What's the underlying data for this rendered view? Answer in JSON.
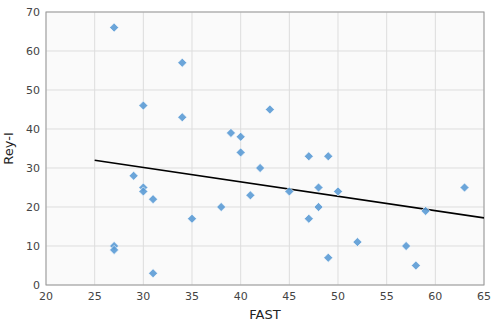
{
  "chart_data": {
    "type": "scatter",
    "xlabel": "FAST",
    "ylabel": "Rey-I",
    "xlim": [
      20,
      65
    ],
    "ylim": [
      0,
      70
    ],
    "xticks": [
      20,
      25,
      30,
      35,
      40,
      45,
      50,
      55,
      60,
      65
    ],
    "yticks": [
      0,
      10,
      20,
      30,
      40,
      50,
      60,
      70
    ],
    "grid": true,
    "series": [
      {
        "type": "scatter",
        "color": "#5B9BD5",
        "marker": "diamond",
        "x": [
          27,
          27,
          27,
          29,
          30,
          30,
          30,
          31,
          31,
          34,
          34,
          35,
          38,
          39,
          40,
          40,
          41,
          42,
          43,
          45,
          47,
          47,
          48,
          48,
          49,
          49,
          50,
          52,
          57,
          58,
          59,
          63
        ],
        "values": [
          66,
          10,
          9,
          28,
          46,
          25,
          24,
          22,
          3,
          57,
          43,
          17,
          20,
          39,
          38,
          34,
          23,
          30,
          45,
          24,
          33,
          17,
          25,
          20,
          33,
          7,
          24,
          11,
          10,
          5,
          19,
          25
        ]
      },
      {
        "type": "line",
        "color": "#000000",
        "x": [
          25,
          65
        ],
        "values": [
          32.0,
          17.2
        ]
      }
    ]
  }
}
